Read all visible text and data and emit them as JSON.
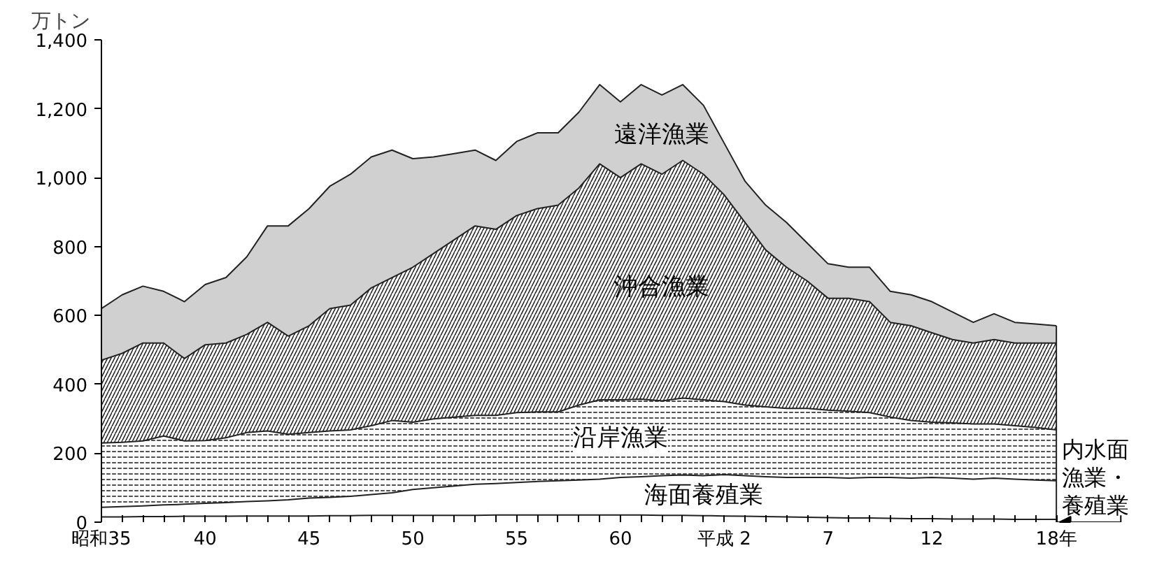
{
  "chart_data": {
    "type": "area",
    "stacked": true,
    "ylabel": "万トン",
    "categories": [
      "昭和35",
      null,
      null,
      null,
      null,
      "40",
      null,
      null,
      null,
      null,
      "45",
      null,
      null,
      null,
      null,
      "50",
      null,
      null,
      null,
      null,
      "55",
      null,
      null,
      null,
      null,
      "60",
      null,
      null,
      null,
      null,
      "平成 2",
      null,
      null,
      null,
      null,
      "7",
      null,
      null,
      null,
      null,
      "12",
      null,
      null,
      null,
      null,
      null,
      "18年"
    ],
    "ylim": [
      0,
      1400
    ],
    "yticks": [
      0,
      200,
      400,
      600,
      800,
      {
        "value": 1000,
        "label": "1,000"
      },
      {
        "value": 1200,
        "label": "1,200"
      },
      {
        "value": 1400,
        "label": "1,400"
      }
    ],
    "series": [
      {
        "name": "内水面漁業・養殖業",
        "color": "#ffffff",
        "values": [
          15,
          15,
          16,
          16,
          17,
          17,
          17,
          18,
          18,
          18,
          18,
          19,
          19,
          20,
          20,
          20,
          20,
          20,
          20,
          21,
          21,
          21,
          21,
          21,
          21,
          21,
          21,
          20,
          20,
          19,
          18,
          17,
          16,
          15,
          14,
          13,
          12,
          12,
          11,
          10,
          10,
          9,
          9,
          9,
          8,
          8,
          8
        ]
      },
      {
        "name": "海面養殖業",
        "color": "#ffffff",
        "values": [
          28,
          30,
          31,
          34,
          35,
          38,
          40,
          42,
          44,
          47,
          52,
          53,
          56,
          60,
          65,
          75,
          80,
          85,
          90,
          91,
          94,
          97,
          99,
          101,
          104,
          109,
          111,
          115,
          117,
          116,
          120,
          118,
          116,
          115,
          116,
          117,
          116,
          118,
          119,
          118,
          120,
          119,
          116,
          119,
          117,
          114,
          112
        ]
      },
      {
        "name": "沿岸漁業",
        "color": "#ffffff",
        "values": [
          187,
          187,
          189,
          200,
          184,
          182,
          188,
          200,
          203,
          190,
          190,
          193,
          193,
          200,
          210,
          195,
          200,
          200,
          200,
          198,
          203,
          202,
          200,
          218,
          230,
          225,
          225,
          217,
          223,
          220,
          212,
          205,
          203,
          200,
          200,
          195,
          194,
          188,
          175,
          167,
          160,
          160,
          160,
          157,
          155,
          153,
          148
        ]
      },
      {
        "name": "沖合漁業",
        "color": "#ffffff",
        "values": [
          240,
          258,
          284,
          270,
          239,
          278,
          275,
          285,
          315,
          285,
          310,
          355,
          362,
          400,
          415,
          450,
          480,
          515,
          550,
          540,
          572,
          590,
          600,
          630,
          685,
          645,
          683,
          658,
          690,
          655,
          600,
          530,
          455,
          410,
          370,
          325,
          328,
          322,
          275,
          275,
          260,
          242,
          235,
          245,
          240,
          245,
          252
        ]
      },
      {
        "name": "遠洋漁業",
        "color": "#d0d0d0",
        "values": [
          150,
          170,
          165,
          150,
          165,
          175,
          190,
          225,
          280,
          320,
          340,
          355,
          380,
          380,
          370,
          315,
          280,
          250,
          220,
          200,
          215,
          220,
          210,
          220,
          230,
          220,
          230,
          230,
          220,
          200,
          150,
          120,
          130,
          130,
          110,
          100,
          90,
          100,
          90,
          90,
          90,
          80,
          60,
          75,
          60,
          55,
          50
        ]
      }
    ]
  }
}
